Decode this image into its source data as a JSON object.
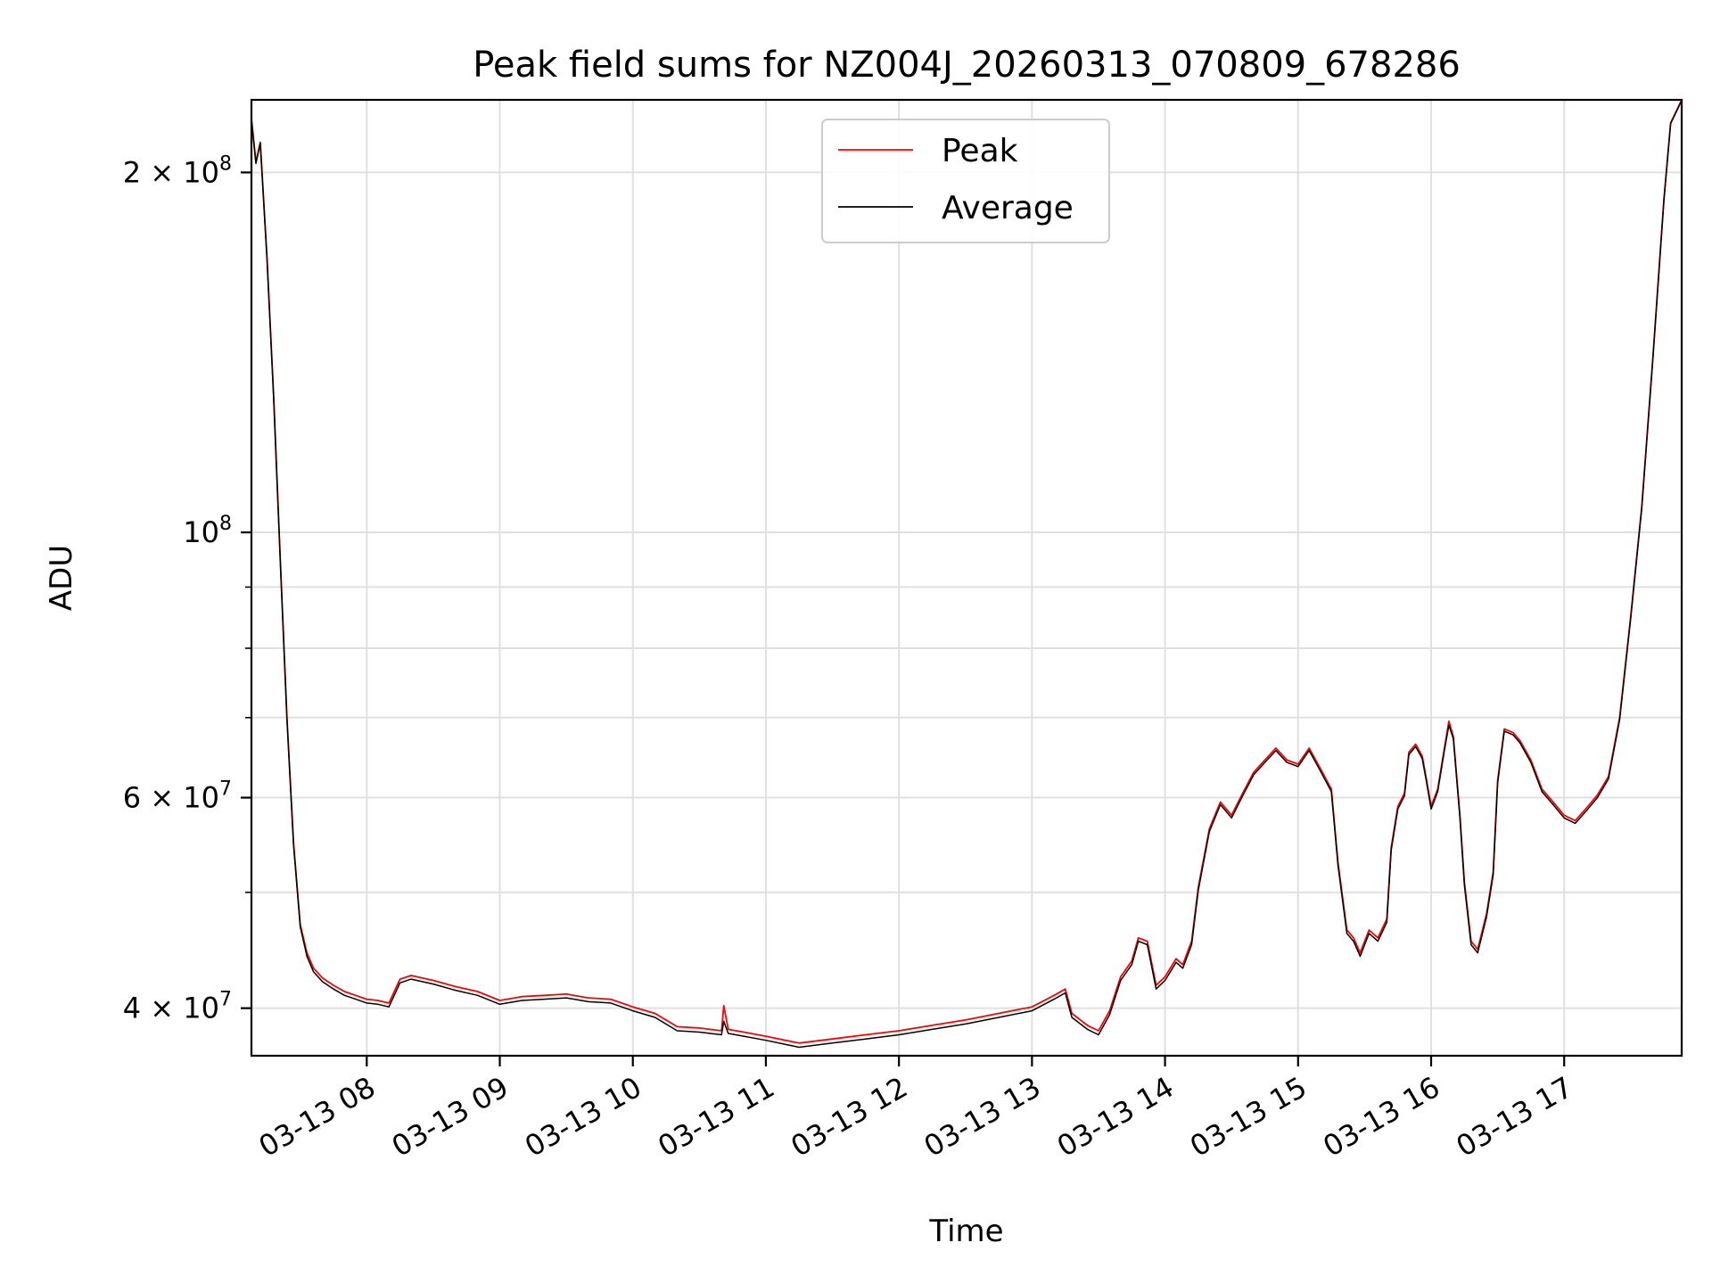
{
  "chart_data": {
    "type": "line",
    "title": "Peak field sums for NZ004J_20260313_070809_678286",
    "xlabel": "Time",
    "ylabel": "ADU",
    "yscale": "log",
    "grid": true,
    "legend_position": "top-center",
    "x_tick_labels": [
      "03-13 08",
      "03-13 09",
      "03-13 10",
      "03-13 11",
      "03-13 12",
      "03-13 13",
      "03-13 14",
      "03-13 15",
      "03-13 16",
      "03-13 17"
    ],
    "x_tick_hours": [
      8,
      9,
      10,
      11,
      12,
      13,
      14,
      15,
      16,
      17
    ],
    "xlim": [
      "2026-03-13 07:08",
      "2026-03-13 17:53"
    ],
    "ylim": [
      36500000,
      230000000
    ],
    "y_major_ticks": [
      {
        "value": 40000000,
        "mantissa": "4",
        "exp": "7"
      },
      {
        "value": 60000000,
        "mantissa": "6",
        "exp": "7"
      },
      {
        "value": 100000000,
        "mantissa": "",
        "exp": "8"
      },
      {
        "value": 200000000,
        "mantissa": "2",
        "exp": "8"
      }
    ],
    "y_minor_ticks": [
      50000000,
      70000000,
      80000000,
      90000000
    ],
    "series": [
      {
        "name": "Peak",
        "color": "#ff0000",
        "points": [
          [
            "07:08",
            222000000
          ],
          [
            "07:10",
            204000000
          ],
          [
            "07:12",
            212000000
          ],
          [
            "07:15",
            170000000
          ],
          [
            "07:18",
            130000000
          ],
          [
            "07:21",
            95000000
          ],
          [
            "07:24",
            70000000
          ],
          [
            "07:27",
            55000000
          ],
          [
            "07:30",
            47000000
          ],
          [
            "07:33",
            44500000
          ],
          [
            "07:36",
            43200000
          ],
          [
            "07:40",
            42400000
          ],
          [
            "07:45",
            41800000
          ],
          [
            "07:50",
            41300000
          ],
          [
            "07:55",
            41000000
          ],
          [
            "08:00",
            40700000
          ],
          [
            "08:05",
            40600000
          ],
          [
            "08:10",
            40400000
          ],
          [
            "08:15",
            42300000
          ],
          [
            "08:20",
            42600000
          ],
          [
            "08:25",
            42400000
          ],
          [
            "08:30",
            42200000
          ],
          [
            "08:40",
            41700000
          ],
          [
            "08:50",
            41300000
          ],
          [
            "09:00",
            40600000
          ],
          [
            "09:10",
            40900000
          ],
          [
            "09:20",
            41000000
          ],
          [
            "09:30",
            41100000
          ],
          [
            "09:40",
            40800000
          ],
          [
            "09:50",
            40700000
          ],
          [
            "10:00",
            40100000
          ],
          [
            "10:10",
            39600000
          ],
          [
            "10:20",
            38600000
          ],
          [
            "10:30",
            38500000
          ],
          [
            "10:40",
            38300000
          ],
          [
            "10:41",
            40200000
          ],
          [
            "10:43",
            38400000
          ],
          [
            "10:50",
            38200000
          ],
          [
            "11:00",
            37900000
          ],
          [
            "11:15",
            37400000
          ],
          [
            "11:30",
            37700000
          ],
          [
            "11:45",
            38000000
          ],
          [
            "12:00",
            38300000
          ],
          [
            "12:15",
            38700000
          ],
          [
            "12:30",
            39100000
          ],
          [
            "12:45",
            39600000
          ],
          [
            "13:00",
            40100000
          ],
          [
            "13:10",
            41000000
          ],
          [
            "13:15",
            41500000
          ],
          [
            "13:18",
            39600000
          ],
          [
            "13:25",
            38700000
          ],
          [
            "13:30",
            38300000
          ],
          [
            "13:35",
            39800000
          ],
          [
            "13:40",
            42500000
          ],
          [
            "13:45",
            43800000
          ],
          [
            "13:48",
            45800000
          ],
          [
            "13:52",
            45500000
          ],
          [
            "13:56",
            41800000
          ],
          [
            "14:00",
            42500000
          ],
          [
            "14:05",
            44000000
          ],
          [
            "14:08",
            43500000
          ],
          [
            "14:12",
            45500000
          ],
          [
            "14:15",
            50500000
          ],
          [
            "14:20",
            56500000
          ],
          [
            "14:25",
            59500000
          ],
          [
            "14:30",
            58000000
          ],
          [
            "14:35",
            60500000
          ],
          [
            "14:40",
            63000000
          ],
          [
            "14:45",
            64500000
          ],
          [
            "14:50",
            66000000
          ],
          [
            "14:55",
            64500000
          ],
          [
            "15:00",
            64000000
          ],
          [
            "15:05",
            66000000
          ],
          [
            "15:10",
            63500000
          ],
          [
            "15:15",
            61000000
          ],
          [
            "15:18",
            53000000
          ],
          [
            "15:22",
            46500000
          ],
          [
            "15:25",
            45800000
          ],
          [
            "15:28",
            44500000
          ],
          [
            "15:32",
            46500000
          ],
          [
            "15:36",
            45800000
          ],
          [
            "15:40",
            47500000
          ],
          [
            "15:42",
            54500000
          ],
          [
            "15:45",
            59000000
          ],
          [
            "15:48",
            60500000
          ],
          [
            "15:50",
            65500000
          ],
          [
            "15:53",
            66500000
          ],
          [
            "15:56",
            65000000
          ],
          [
            "15:58",
            62000000
          ],
          [
            "16:00",
            59000000
          ],
          [
            "16:03",
            61000000
          ],
          [
            "16:06",
            66000000
          ],
          [
            "16:08",
            69500000
          ],
          [
            "16:10",
            67500000
          ],
          [
            "16:13",
            58000000
          ],
          [
            "16:15",
            51000000
          ],
          [
            "16:18",
            45500000
          ],
          [
            "16:21",
            44800000
          ],
          [
            "16:25",
            48000000
          ],
          [
            "16:28",
            52000000
          ],
          [
            "16:30",
            62000000
          ],
          [
            "16:33",
            68500000
          ],
          [
            "16:37",
            68000000
          ],
          [
            "16:40",
            67000000
          ],
          [
            "16:45",
            64500000
          ],
          [
            "16:50",
            61000000
          ],
          [
            "16:55",
            59500000
          ],
          [
            "17:00",
            58000000
          ],
          [
            "17:05",
            57400000
          ],
          [
            "17:10",
            58800000
          ],
          [
            "17:15",
            60300000
          ],
          [
            "17:20",
            62500000
          ],
          [
            "17:25",
            70000000
          ],
          [
            "17:30",
            85000000
          ],
          [
            "17:35",
            105000000
          ],
          [
            "17:40",
            140000000
          ],
          [
            "17:45",
            190000000
          ],
          [
            "17:48",
            220000000
          ],
          [
            "17:53",
            230000000
          ]
        ]
      },
      {
        "name": "Average",
        "color": "#000000",
        "points": [
          [
            "07:08",
            221500000
          ],
          [
            "07:10",
            203500000
          ],
          [
            "07:12",
            211500000
          ],
          [
            "07:15",
            169500000
          ],
          [
            "07:18",
            129500000
          ],
          [
            "07:21",
            94800000
          ],
          [
            "07:24",
            69800000
          ],
          [
            "07:27",
            54800000
          ],
          [
            "07:30",
            46800000
          ],
          [
            "07:33",
            44200000
          ],
          [
            "07:36",
            42900000
          ],
          [
            "07:40",
            42100000
          ],
          [
            "07:45",
            41500000
          ],
          [
            "07:50",
            41000000
          ],
          [
            "07:55",
            40700000
          ],
          [
            "08:00",
            40400000
          ],
          [
            "08:05",
            40300000
          ],
          [
            "08:10",
            40100000
          ],
          [
            "08:15",
            42000000
          ],
          [
            "08:20",
            42300000
          ],
          [
            "08:25",
            42100000
          ],
          [
            "08:30",
            41900000
          ],
          [
            "08:40",
            41400000
          ],
          [
            "08:50",
            41000000
          ],
          [
            "09:00",
            40300000
          ],
          [
            "09:10",
            40600000
          ],
          [
            "09:20",
            40700000
          ],
          [
            "09:30",
            40800000
          ],
          [
            "09:40",
            40500000
          ],
          [
            "09:50",
            40400000
          ],
          [
            "10:00",
            39800000
          ],
          [
            "10:10",
            39300000
          ],
          [
            "10:20",
            38300000
          ],
          [
            "10:30",
            38200000
          ],
          [
            "10:40",
            38000000
          ],
          [
            "10:41",
            39000000
          ],
          [
            "10:43",
            38100000
          ],
          [
            "10:50",
            37900000
          ],
          [
            "11:00",
            37600000
          ],
          [
            "11:15",
            37100000
          ],
          [
            "11:30",
            37400000
          ],
          [
            "11:45",
            37700000
          ],
          [
            "12:00",
            38000000
          ],
          [
            "12:15",
            38400000
          ],
          [
            "12:30",
            38800000
          ],
          [
            "12:45",
            39300000
          ],
          [
            "13:00",
            39800000
          ],
          [
            "13:10",
            40700000
          ],
          [
            "13:15",
            41200000
          ],
          [
            "13:18",
            39300000
          ],
          [
            "13:25",
            38400000
          ],
          [
            "13:30",
            38000000
          ],
          [
            "13:35",
            39500000
          ],
          [
            "13:40",
            42200000
          ],
          [
            "13:45",
            43500000
          ],
          [
            "13:48",
            45500000
          ],
          [
            "13:52",
            45200000
          ],
          [
            "13:56",
            41500000
          ],
          [
            "14:00",
            42200000
          ],
          [
            "14:05",
            43700000
          ],
          [
            "14:08",
            43200000
          ],
          [
            "14:12",
            45200000
          ],
          [
            "14:15",
            50200000
          ],
          [
            "14:20",
            56200000
          ],
          [
            "14:25",
            59200000
          ],
          [
            "14:30",
            57700000
          ],
          [
            "14:35",
            60200000
          ],
          [
            "14:40",
            62700000
          ],
          [
            "14:45",
            64200000
          ],
          [
            "14:50",
            65700000
          ],
          [
            "14:55",
            64200000
          ],
          [
            "15:00",
            63700000
          ],
          [
            "15:05",
            65700000
          ],
          [
            "15:10",
            63200000
          ],
          [
            "15:15",
            60700000
          ],
          [
            "15:18",
            52700000
          ],
          [
            "15:22",
            46200000
          ],
          [
            "15:25",
            45500000
          ],
          [
            "15:28",
            44200000
          ],
          [
            "15:32",
            46200000
          ],
          [
            "15:36",
            45500000
          ],
          [
            "15:40",
            47200000
          ],
          [
            "15:42",
            54200000
          ],
          [
            "15:45",
            58700000
          ],
          [
            "15:48",
            60200000
          ],
          [
            "15:50",
            65200000
          ],
          [
            "15:53",
            66200000
          ],
          [
            "15:56",
            64700000
          ],
          [
            "15:58",
            61700000
          ],
          [
            "16:00",
            58700000
          ],
          [
            "16:03",
            60700000
          ],
          [
            "16:06",
            65700000
          ],
          [
            "16:08",
            69000000
          ],
          [
            "16:10",
            67200000
          ],
          [
            "16:13",
            57700000
          ],
          [
            "16:15",
            50700000
          ],
          [
            "16:18",
            45200000
          ],
          [
            "16:21",
            44500000
          ],
          [
            "16:25",
            47700000
          ],
          [
            "16:28",
            51700000
          ],
          [
            "16:30",
            61700000
          ],
          [
            "16:33",
            68200000
          ],
          [
            "16:37",
            67700000
          ],
          [
            "16:40",
            66700000
          ],
          [
            "16:45",
            64200000
          ],
          [
            "16:50",
            60700000
          ],
          [
            "16:55",
            59200000
          ],
          [
            "17:00",
            57700000
          ],
          [
            "17:05",
            57100000
          ],
          [
            "17:10",
            58500000
          ],
          [
            "17:15",
            60000000
          ],
          [
            "17:20",
            62200000
          ],
          [
            "17:25",
            69700000
          ],
          [
            "17:30",
            84700000
          ],
          [
            "17:35",
            104700000
          ],
          [
            "17:40",
            139700000
          ],
          [
            "17:45",
            189700000
          ],
          [
            "17:48",
            219700000
          ],
          [
            "17:53",
            229700000
          ]
        ]
      }
    ]
  }
}
